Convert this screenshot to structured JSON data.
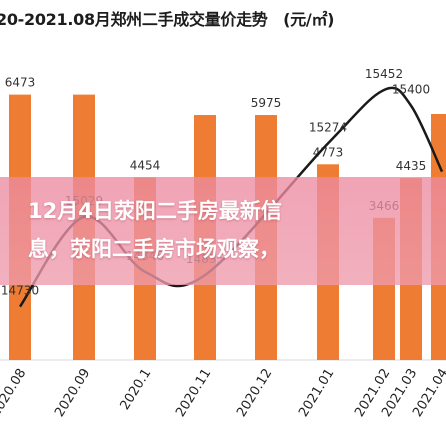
{
  "headline": {
    "line1": "12月4日荥阳二手房最新信",
    "line2": "息，荥阳二手房市场观察，"
  },
  "chart_data": {
    "type": "bar",
    "title": "20-2021.08月郑州二手成交量价走势　(元/㎡)",
    "categories": [
      "2020.08",
      "2020.09",
      "2020.1",
      "2020.11",
      "2020.12",
      "2021.01",
      "2021.02",
      "2021.03",
      "2021.04"
    ],
    "series": [
      {
        "values": [
          6473,
          6473,
          4454,
          5975,
          5975,
          4773,
          3466,
          4435,
          6000
        ],
        "labels": [
          "6473",
          "",
          "4454",
          "",
          "5975",
          "4773",
          "3466",
          "4435",
          ""
        ]
      },
      {
        "values": [
          14730,
          15029,
          14846,
          14835,
          null,
          15274,
          15452,
          15400,
          15180
        ],
        "labels": [
          "14730",
          "15029",
          "14846",
          "14835",
          "",
          "15274",
          "15452",
          "15400",
          ""
        ]
      }
    ],
    "colors": {
      "bar": "#ee7d33",
      "line": "#1a1a1a",
      "grid": "#d9d9d9",
      "label": "#333333"
    }
  }
}
